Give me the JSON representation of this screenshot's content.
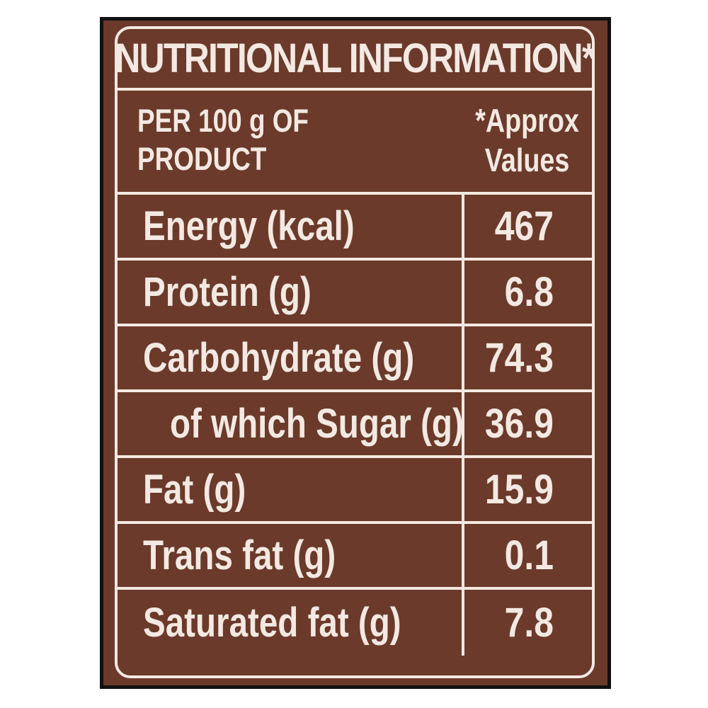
{
  "colors": {
    "background": "#6b3a2a",
    "text": "#f3e9e2",
    "outer_border": "#111111"
  },
  "title": "NUTRITIONAL INFORMATION*",
  "subhead": {
    "left_line1": "PER 100 g OF",
    "left_line2": "PRODUCT",
    "right_line1": "*Approx",
    "right_line2": "Values"
  },
  "rows": [
    {
      "name": "Energy (kcal)",
      "value": "467"
    },
    {
      "name": "Protein (g)",
      "value": "6.8"
    },
    {
      "name": "Carbohydrate (g)",
      "value": "74.3"
    },
    {
      "name": "of which Sugar (g)",
      "value": "36.9"
    },
    {
      "name": "Fat (g)",
      "value": "15.9"
    },
    {
      "name": "Trans fat (g)",
      "value": "0.1"
    },
    {
      "name": "Saturated fat (g)",
      "value": "7.8"
    }
  ]
}
